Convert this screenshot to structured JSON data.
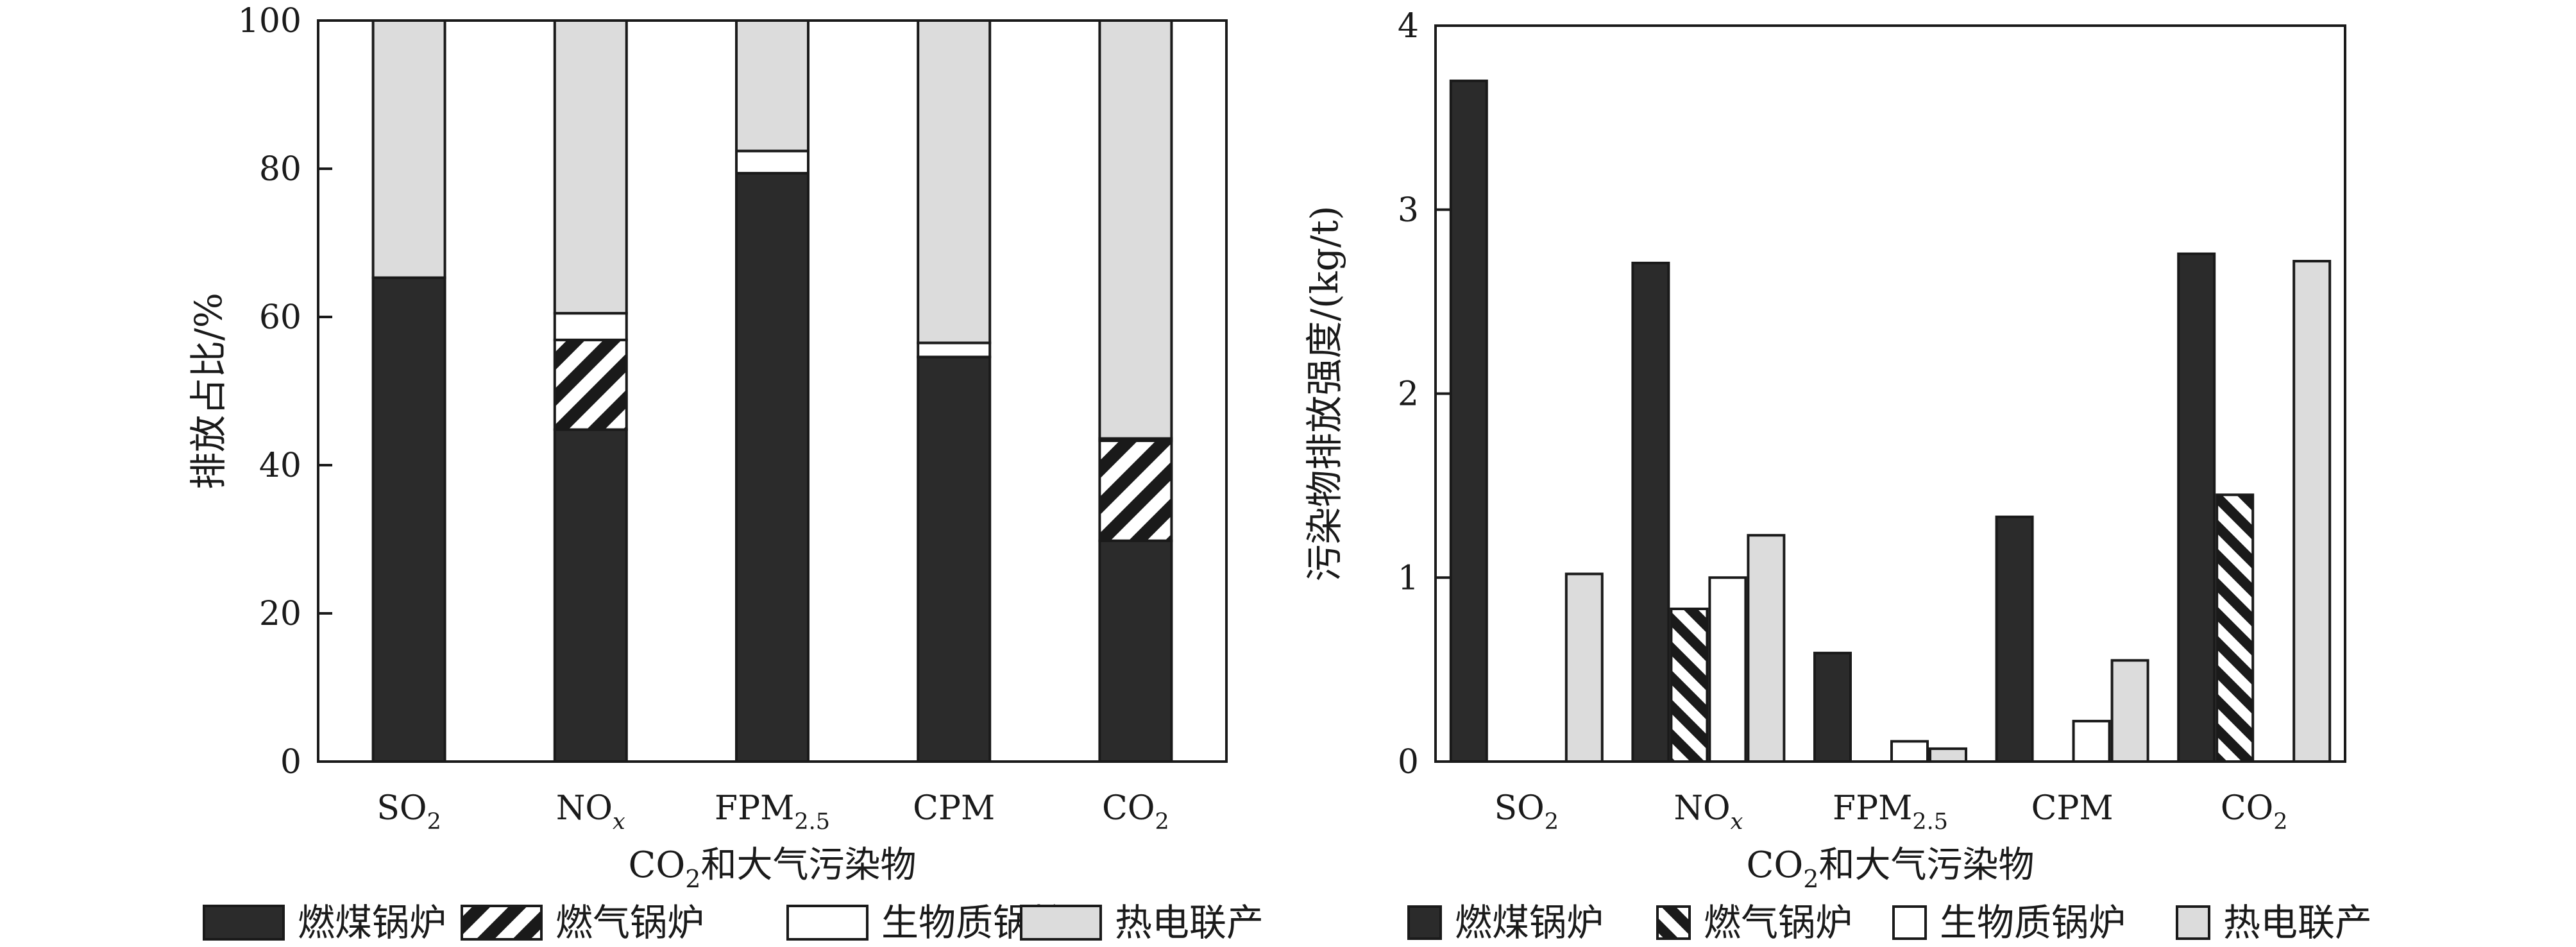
{
  "colors": {
    "coal": "#2b2b2b",
    "gas": "#1a1a1a",
    "biomass": "#ffffff",
    "chp": "#dcdcdc",
    "axis": "#1a1a1a"
  },
  "legend_items": [
    {
      "key": "coal",
      "label": "燃煤锅炉"
    },
    {
      "key": "gas",
      "label": "燃气锅炉"
    },
    {
      "key": "biomass",
      "label": "生物质锅炉"
    },
    {
      "key": "chp",
      "label": "热电联产"
    }
  ],
  "chart_data": [
    {
      "type": "bar",
      "stacked": true,
      "ylabel": "排放占比/%",
      "xlabel": {
        "main": "CO",
        "sub": "2",
        "rest": "和大气污染物"
      },
      "ylim": [
        0,
        100
      ],
      "yticks": [
        "0",
        "20",
        "40",
        "60",
        "80",
        "100"
      ],
      "categories": [
        {
          "main": "SO",
          "sub": "2",
          "italic": false
        },
        {
          "main": "NO",
          "sub": "x",
          "italic": true
        },
        {
          "main": "FPM",
          "sub": "2.5",
          "italic": false
        },
        {
          "main": "CPM",
          "sub": "",
          "italic": false
        },
        {
          "main": "CO",
          "sub": "2",
          "italic": false
        }
      ],
      "series": [
        {
          "key": "coal",
          "name": "燃煤锅炉",
          "values": [
            65.3,
            44.8,
            79.4,
            54.6,
            29.8
          ]
        },
        {
          "key": "gas",
          "name": "燃气锅炉",
          "values": [
            0,
            12.1,
            0,
            0,
            13.5
          ]
        },
        {
          "key": "biomass",
          "name": "生物质锅炉",
          "values": [
            0,
            3.6,
            3.0,
            1.9,
            0.3
          ]
        },
        {
          "key": "chp",
          "name": "热电联产",
          "values": [
            34.7,
            39.5,
            17.6,
            43.5,
            56.4
          ]
        }
      ],
      "legend_position": "bottom"
    },
    {
      "type": "bar",
      "stacked": false,
      "ylabel": "污染物排放强度/(kg/t)",
      "xlabel": {
        "main": "CO",
        "sub": "2",
        "rest": "和大气污染物"
      },
      "ylim": [
        0,
        4
      ],
      "yticks": [
        "0",
        "1",
        "2",
        "3",
        "4"
      ],
      "categories": [
        {
          "main": "SO",
          "sub": "2",
          "italic": false
        },
        {
          "main": "NO",
          "sub": "x",
          "italic": true
        },
        {
          "main": "FPM",
          "sub": "2.5",
          "italic": false
        },
        {
          "main": "CPM",
          "sub": "",
          "italic": false
        },
        {
          "main": "CO",
          "sub": "2",
          "italic": false
        }
      ],
      "series": [
        {
          "key": "coal",
          "name": "燃煤锅炉",
          "values": [
            3.7,
            2.71,
            0.59,
            1.33,
            2.76
          ]
        },
        {
          "key": "gas",
          "name": "燃气锅炉",
          "values": [
            0,
            0.83,
            0,
            0,
            1.45
          ]
        },
        {
          "key": "biomass",
          "name": "生物质锅炉",
          "values": [
            0,
            1.0,
            0.11,
            0.22,
            0
          ]
        },
        {
          "key": "chp",
          "name": "热电联产",
          "values": [
            1.02,
            1.23,
            0.07,
            0.55,
            2.72
          ]
        }
      ],
      "legend_position": "bottom"
    }
  ]
}
